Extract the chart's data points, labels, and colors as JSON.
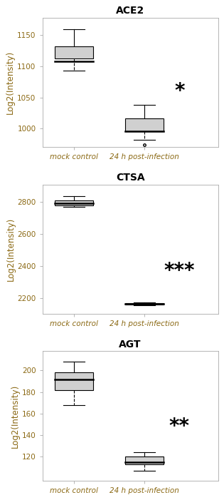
{
  "plots": [
    {
      "title": "ACE2",
      "ylabel": "Log2(Intensity)",
      "groups": [
        "mock control",
        "24 h post-infection"
      ],
      "mock": {
        "median": 1108,
        "q1": 1112,
        "q3": 1132,
        "whisker_low": 1093,
        "whisker_high": 1160,
        "flier_low": null,
        "flier_high": null
      },
      "infected": {
        "median": 996,
        "q1": 996,
        "q3": 1016,
        "whisker_low": 982,
        "whisker_high": 1038,
        "flier_low": 974,
        "flier_high": null
      },
      "ylim": [
        970,
        1178
      ],
      "yticks": [
        1000,
        1050,
        1100,
        1150
      ],
      "star": "*",
      "star_x": 1.5,
      "star_y": 1060
    },
    {
      "title": "CTSA",
      "ylabel": "Log2(Intensity)",
      "groups": [
        "mock control",
        "24 h post-infection"
      ],
      "mock": {
        "median": 2790,
        "q1": 2778,
        "q3": 2812,
        "whisker_low": 2768,
        "whisker_high": 2838,
        "flier_low": null,
        "flier_high": null
      },
      "infected": {
        "median": 2163,
        "q1": 2160,
        "q3": 2168,
        "whisker_low": 2152,
        "whisker_high": 2173,
        "flier_low": null,
        "flier_high": null
      },
      "ylim": [
        2100,
        2910
      ],
      "yticks": [
        2200,
        2400,
        2600,
        2800
      ],
      "star": "***",
      "star_x": 1.5,
      "star_y": 2370
    },
    {
      "title": "AGT",
      "ylabel": "Log2(Intensity)",
      "groups": [
        "mock control",
        "24 h post-infection"
      ],
      "mock": {
        "median": 192,
        "q1": 182,
        "q3": 198,
        "whisker_low": 168,
        "whisker_high": 208,
        "flier_low": null,
        "flier_high": null
      },
      "infected": {
        "median": 115,
        "q1": 113,
        "q3": 120,
        "whisker_low": 107,
        "whisker_high": 124,
        "flier_low": null,
        "flier_high": null
      },
      "ylim": [
        98,
        218
      ],
      "yticks": [
        120,
        140,
        160,
        180,
        200
      ],
      "star": "**",
      "star_x": 1.5,
      "star_y": 148
    }
  ],
  "box_color": "#d0d0d0",
  "box_edge_color": "#000000",
  "median_color": "#000000",
  "whisker_color": "#000000",
  "bg_color": "#ffffff",
  "tick_label_color": "#8B6914",
  "title_fontsize": 10,
  "axis_label_fontsize": 8.5,
  "tick_fontsize": 7.5,
  "star_fontsize": 20,
  "box_width": 0.55,
  "xlim": [
    -0.45,
    2.05
  ]
}
